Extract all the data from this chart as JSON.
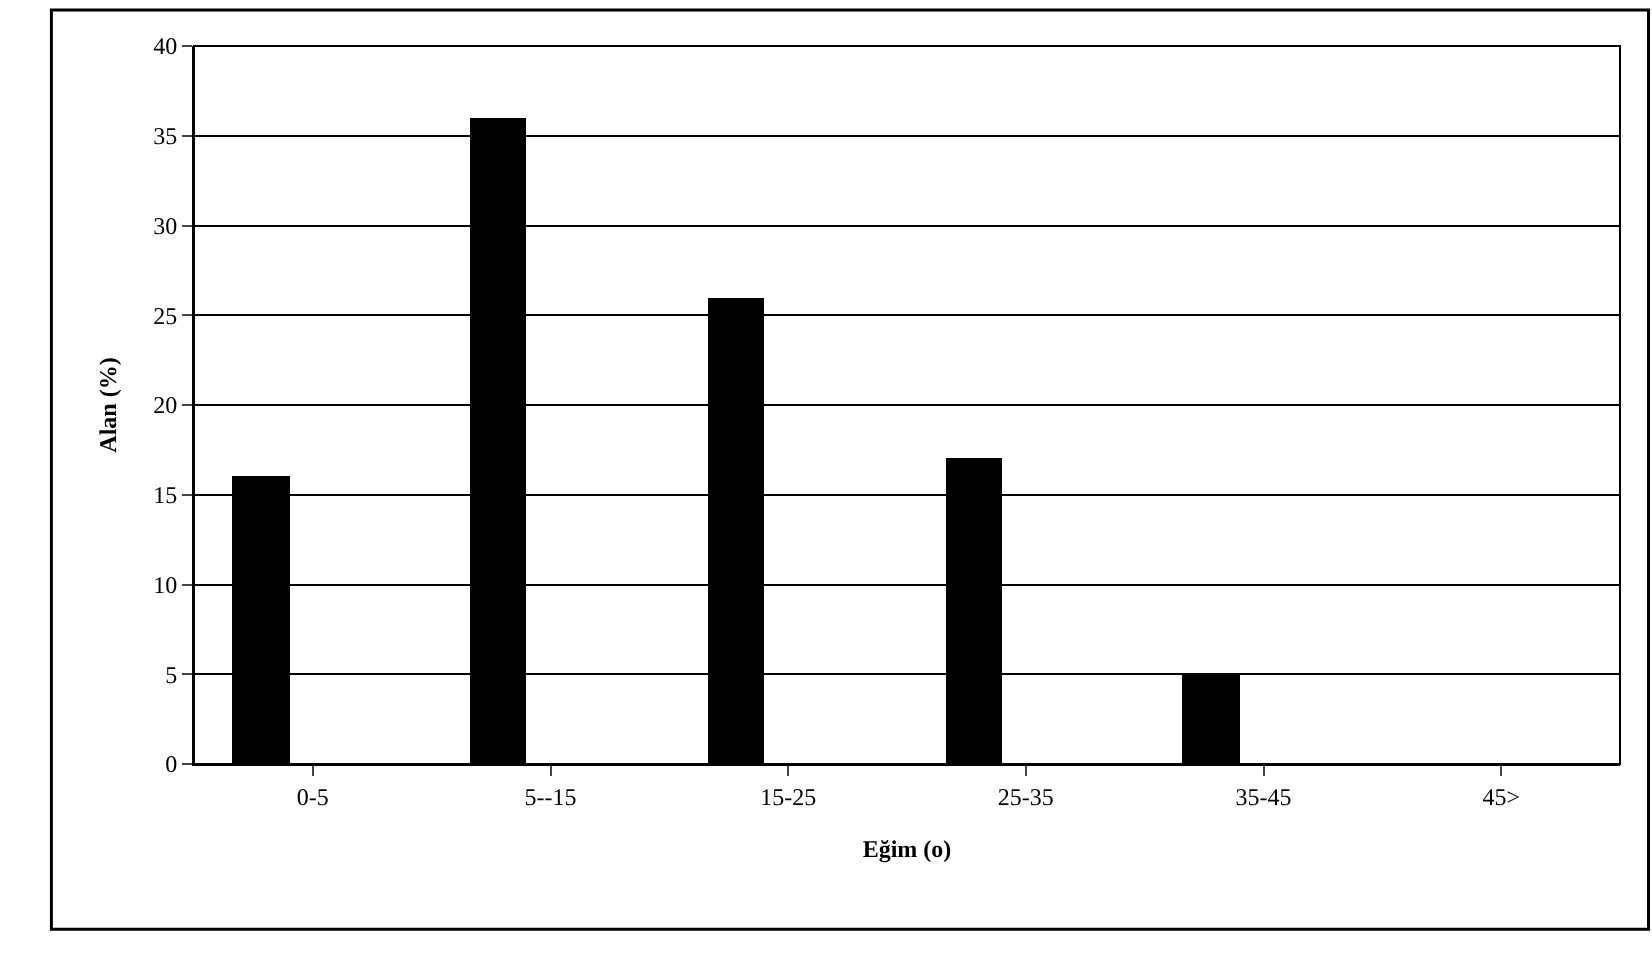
{
  "chart_data": {
    "type": "bar",
    "xlabel": "Eğim (o)",
    "ylabel": "Alan (%)",
    "categories": [
      "0-5",
      "5--15",
      "15-25",
      "25-35",
      "35-45",
      "45>"
    ],
    "values": [
      16,
      36,
      26,
      17,
      5,
      0
    ],
    "color": "#000000",
    "ylim": [
      0,
      40
    ],
    "yticks": [
      0,
      5,
      10,
      15,
      20,
      25,
      30,
      35,
      40
    ],
    "grid": "y"
  }
}
